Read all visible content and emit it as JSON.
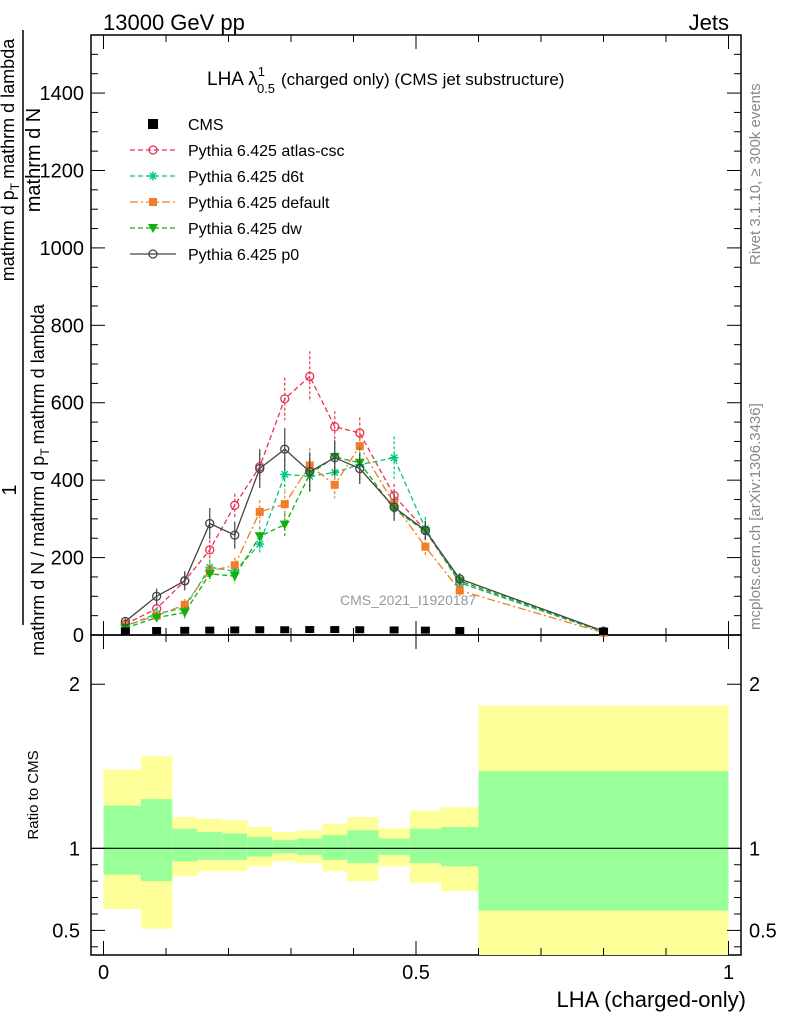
{
  "header": {
    "left": "13000 GeV pp",
    "right": "Jets"
  },
  "plot_title": {
    "main": "LHA λ",
    "superscript": "1",
    "subscript": "0.5",
    "rest": "(charged only) (CMS jet substructure)"
  },
  "side_text": {
    "rivet": "Rivet 3.1.10, ≥ 300k events",
    "mcplots": "mcplots.cern.ch [arXiv:1306.3436]"
  },
  "watermark": "CMS_2021_I1920187",
  "ylabel": {
    "one": "1",
    "frac_num": "mathrm d N / mathrm d p_T mathrm d lambda",
    "frac_den": "mathrm d N / mathrm d p_T mathrm d lambda"
  },
  "ylabel_lines": {
    "numerator": "mathrm d N",
    "left_part": "mathrm d N / mathrm d p",
    "t1": "T",
    "mid": "mathrm d lambda",
    "right_part": "mathrm d p",
    "t2": "T",
    "tail": "mathrm d lambda"
  },
  "ratio_ylabel": "Ratio to CMS",
  "xlabel": "LHA (charged-only)",
  "colors": {
    "cms": "#000000",
    "atlas_csc": "#e8334f",
    "d6t": "#00c878",
    "default": "#f07d28",
    "dw": "#10b010",
    "p0": "#444444",
    "band_outer": "#ffff99",
    "band_inner": "#99ff99"
  },
  "chart_data": {
    "type": "line",
    "xlim": [
      -0.02,
      1.02
    ],
    "ylim": [
      0,
      1550
    ],
    "ratio_ylim": [
      0.35,
      2.3
    ],
    "x_ticks": [
      0,
      0.5,
      1
    ],
    "x_tick_labels": [
      "0",
      "0.5",
      "1"
    ],
    "y_ticks": [
      200,
      400,
      600,
      800,
      1000,
      1200,
      1400
    ],
    "y_tick_labels": [
      "200",
      "400",
      "600",
      "800",
      "1000",
      "1200",
      "1400"
    ],
    "ratio_ticks": [
      0.5,
      1,
      2
    ],
    "ratio_tick_labels": [
      "0.5",
      "1",
      "2"
    ],
    "x": [
      0.035,
      0.085,
      0.13,
      0.17,
      0.21,
      0.25,
      0.29,
      0.33,
      0.37,
      0.41,
      0.465,
      0.515,
      0.57,
      0.8
    ],
    "cms_values": [
      1.5,
      2.5,
      3,
      3.5,
      4,
      4.5,
      4.5,
      5,
      5,
      4.5,
      4,
      3.5,
      2.5,
      0.5
    ],
    "series": [
      {
        "name": "Pythia 6.425 atlas-csc",
        "key": "atlas_csc",
        "values": [
          28,
          68,
          140,
          220,
          335,
          435,
          610,
          668,
          538,
          522,
          360,
          270,
          135,
          8
        ],
        "errors": [
          8,
          15,
          20,
          25,
          30,
          35,
          55,
          65,
          40,
          40,
          30,
          25,
          15,
          5
        ]
      },
      {
        "name": "Pythia 6.425 d6t",
        "key": "d6t",
        "values": [
          22,
          55,
          70,
          175,
          165,
          235,
          415,
          410,
          420,
          440,
          458,
          275,
          135,
          8
        ],
        "errors": [
          8,
          15,
          15,
          20,
          20,
          25,
          40,
          45,
          40,
          45,
          55,
          30,
          15,
          5
        ]
      },
      {
        "name": "Pythia 6.425 default",
        "key": "default",
        "values": [
          25,
          50,
          78,
          165,
          180,
          318,
          338,
          438,
          388,
          488,
          338,
          228,
          115,
          6
        ],
        "errors": [
          8,
          12,
          15,
          20,
          20,
          30,
          35,
          45,
          35,
          45,
          30,
          25,
          15,
          5
        ]
      },
      {
        "name": "Pythia 6.425 dw",
        "key": "dw",
        "values": [
          18,
          45,
          58,
          158,
          152,
          255,
          285,
          415,
          460,
          445,
          325,
          268,
          140,
          9
        ],
        "errors": [
          8,
          12,
          15,
          20,
          20,
          25,
          30,
          40,
          40,
          40,
          30,
          25,
          15,
          5
        ]
      },
      {
        "name": "Pythia 6.425 p0",
        "key": "p0",
        "values": [
          35,
          100,
          140,
          288,
          258,
          430,
          480,
          422,
          458,
          430,
          330,
          270,
          145,
          10
        ],
        "errors": [
          8,
          20,
          25,
          40,
          35,
          50,
          55,
          50,
          45,
          40,
          35,
          25,
          15,
          5
        ]
      }
    ],
    "ratio_bins": [
      {
        "x0": 0.0,
        "x1": 0.06,
        "inner": [
          0.84,
          1.26
        ],
        "outer": [
          0.63,
          1.48
        ]
      },
      {
        "x0": 0.06,
        "x1": 0.11,
        "inner": [
          0.8,
          1.3
        ],
        "outer": [
          0.51,
          1.56
        ]
      },
      {
        "x0": 0.11,
        "x1": 0.15,
        "inner": [
          0.92,
          1.12
        ],
        "outer": [
          0.83,
          1.19
        ]
      },
      {
        "x0": 0.15,
        "x1": 0.19,
        "inner": [
          0.93,
          1.1
        ],
        "outer": [
          0.86,
          1.18
        ]
      },
      {
        "x0": 0.19,
        "x1": 0.23,
        "inner": [
          0.93,
          1.09
        ],
        "outer": [
          0.86,
          1.17
        ]
      },
      {
        "x0": 0.23,
        "x1": 0.27,
        "inner": [
          0.95,
          1.07
        ],
        "outer": [
          0.89,
          1.13
        ]
      },
      {
        "x0": 0.27,
        "x1": 0.31,
        "inner": [
          0.97,
          1.05
        ],
        "outer": [
          0.92,
          1.1
        ]
      },
      {
        "x0": 0.31,
        "x1": 0.35,
        "inner": [
          0.96,
          1.06
        ],
        "outer": [
          0.91,
          1.11
        ]
      },
      {
        "x0": 0.35,
        "x1": 0.39,
        "inner": [
          0.93,
          1.08
        ],
        "outer": [
          0.86,
          1.15
        ]
      },
      {
        "x0": 0.39,
        "x1": 0.44,
        "inner": [
          0.91,
          1.11
        ],
        "outer": [
          0.8,
          1.19
        ]
      },
      {
        "x0": 0.44,
        "x1": 0.49,
        "inner": [
          0.96,
          1.06
        ],
        "outer": [
          0.89,
          1.12
        ]
      },
      {
        "x0": 0.49,
        "x1": 0.54,
        "inner": [
          0.91,
          1.12
        ],
        "outer": [
          0.79,
          1.23
        ]
      },
      {
        "x0": 0.54,
        "x1": 0.6,
        "inner": [
          0.89,
          1.13
        ],
        "outer": [
          0.74,
          1.25
        ]
      },
      {
        "x0": 0.6,
        "x1": 1.0,
        "inner": [
          0.62,
          1.47
        ],
        "outer": [
          0.35,
          1.87
        ]
      }
    ]
  }
}
